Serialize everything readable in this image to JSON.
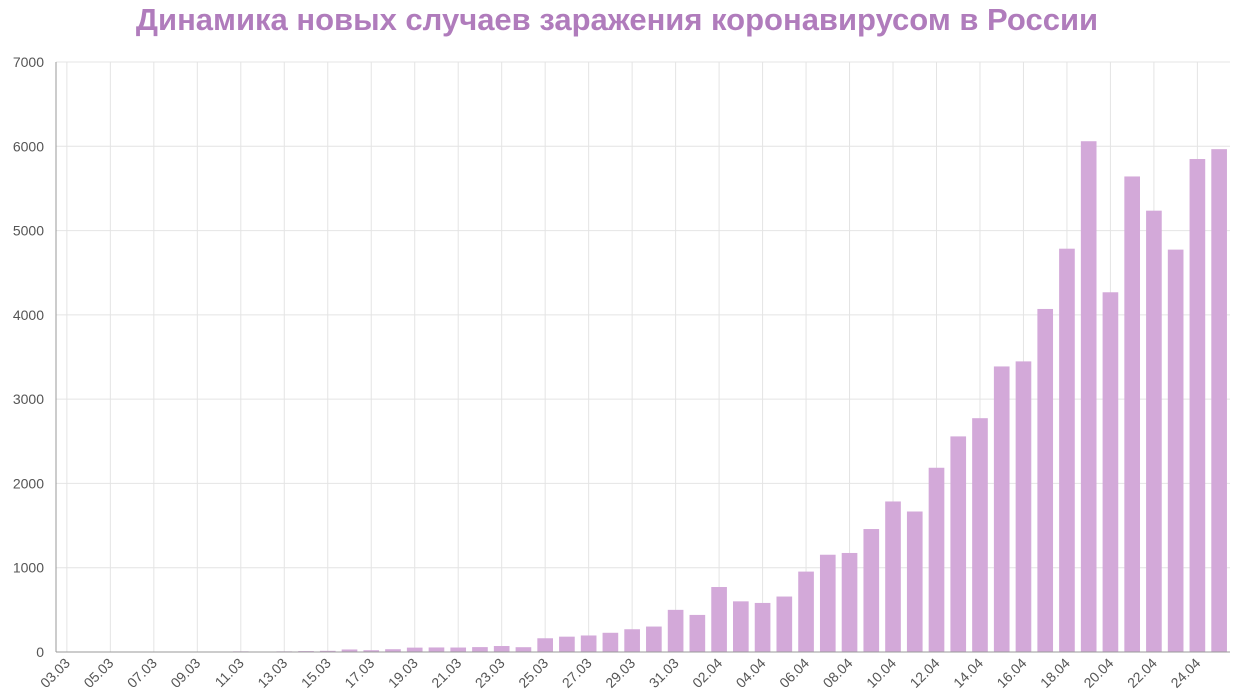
{
  "chart_data": {
    "type": "bar",
    "title": "Динамика новых случаев заражения коронавирусом в России",
    "xlabel": "",
    "ylabel": "",
    "ylim": [
      0,
      7000
    ],
    "yticks": [
      0,
      1000,
      2000,
      3000,
      4000,
      5000,
      6000,
      7000
    ],
    "grid": true,
    "bar_color": "#d3a9d9",
    "title_color": "#b07cbc",
    "categories": [
      "03.03",
      "04.03",
      "05.03",
      "06.03",
      "07.03",
      "08.03",
      "09.03",
      "10.03",
      "11.03",
      "12.03",
      "13.03",
      "14.03",
      "15.03",
      "16.03",
      "17.03",
      "18.03",
      "19.03",
      "20.03",
      "21.03",
      "22.03",
      "23.03",
      "24.03",
      "25.03",
      "26.03",
      "27.03",
      "28.03",
      "29.03",
      "30.03",
      "31.03",
      "01.04",
      "02.04",
      "03.04",
      "04.04",
      "05.04",
      "06.04",
      "07.04",
      "08.04",
      "09.04",
      "10.04",
      "11.04",
      "12.04",
      "13.04",
      "14.04",
      "15.04",
      "16.04",
      "17.04",
      "18.04",
      "19.04",
      "20.04",
      "21.04",
      "22.04",
      "23.04",
      "24.04",
      "25.04"
    ],
    "xtick_labels": [
      "03.03",
      "05.03",
      "07.03",
      "09.03",
      "11.03",
      "13.03",
      "15.03",
      "17.03",
      "19.03",
      "21.03",
      "23.03",
      "25.03",
      "27.03",
      "29.03",
      "31.03",
      "02.04",
      "04.04",
      "06.04",
      "08.04",
      "10.04",
      "12.04",
      "14.04",
      "16.04",
      "18.04",
      "20.04",
      "22.04",
      "24.04"
    ],
    "values": [
      2,
      1,
      1,
      2,
      3,
      0,
      3,
      4,
      8,
      6,
      8,
      11,
      14,
      30,
      21,
      33,
      52,
      54,
      53,
      58,
      71,
      57,
      163,
      182,
      196,
      228,
      270,
      302,
      500,
      440,
      771,
      601,
      582,
      658,
      954,
      1154,
      1175,
      1459,
      1786,
      1667,
      2186,
      2558,
      2774,
      3388,
      3448,
      4070,
      4785,
      6060,
      4268,
      5642,
      5236,
      4774,
      5849,
      5966
    ]
  }
}
